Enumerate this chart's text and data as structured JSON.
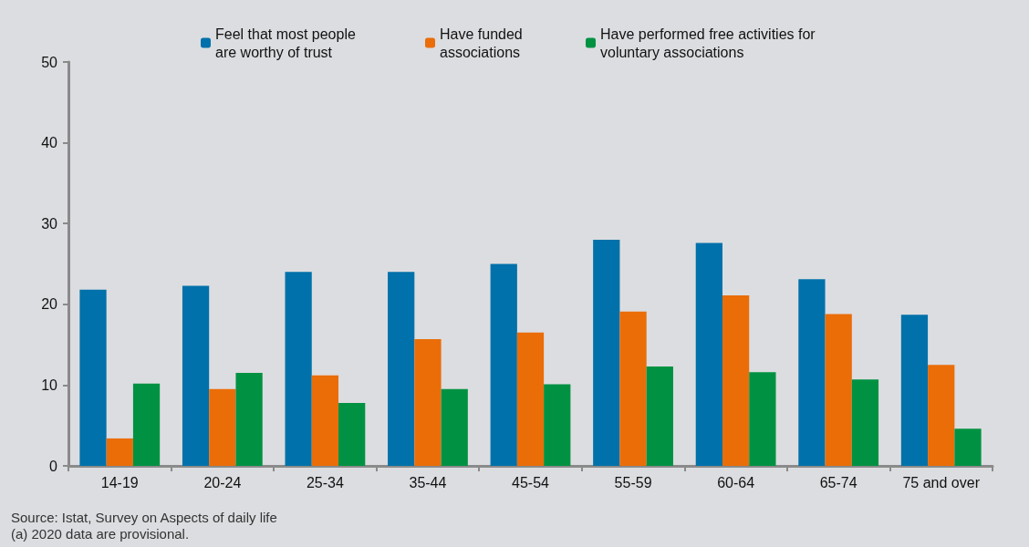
{
  "chart_data": {
    "type": "bar",
    "categories": [
      "14-19",
      "20-24",
      "25-34",
      "35-44",
      "45-54",
      "55-59",
      "60-64",
      "65-74",
      "75 and over"
    ],
    "series": [
      {
        "name": "Feel that most people are worthy of trust",
        "color": "#0071aa",
        "values": [
          21.8,
          22.3,
          24.0,
          24.0,
          25.0,
          28.0,
          27.6,
          23.1,
          18.7
        ]
      },
      {
        "name": "Have funded associations",
        "color": "#ea6d08",
        "values": [
          3.4,
          9.5,
          11.2,
          15.7,
          16.5,
          19.1,
          21.1,
          18.8,
          12.5
        ]
      },
      {
        "name": "Have performed free activities for voluntary associations",
        "color": "#009242",
        "values": [
          10.2,
          11.5,
          7.8,
          9.5,
          10.1,
          12.3,
          11.6,
          10.7,
          4.6
        ]
      }
    ],
    "ylim": [
      0,
      50
    ],
    "yticks": [
      0,
      10,
      20,
      30,
      40,
      50
    ],
    "legend": "top",
    "annotations": [
      "Source: Istat, Survey on Aspects of daily life",
      "(a) 2020 data are provisional."
    ]
  }
}
